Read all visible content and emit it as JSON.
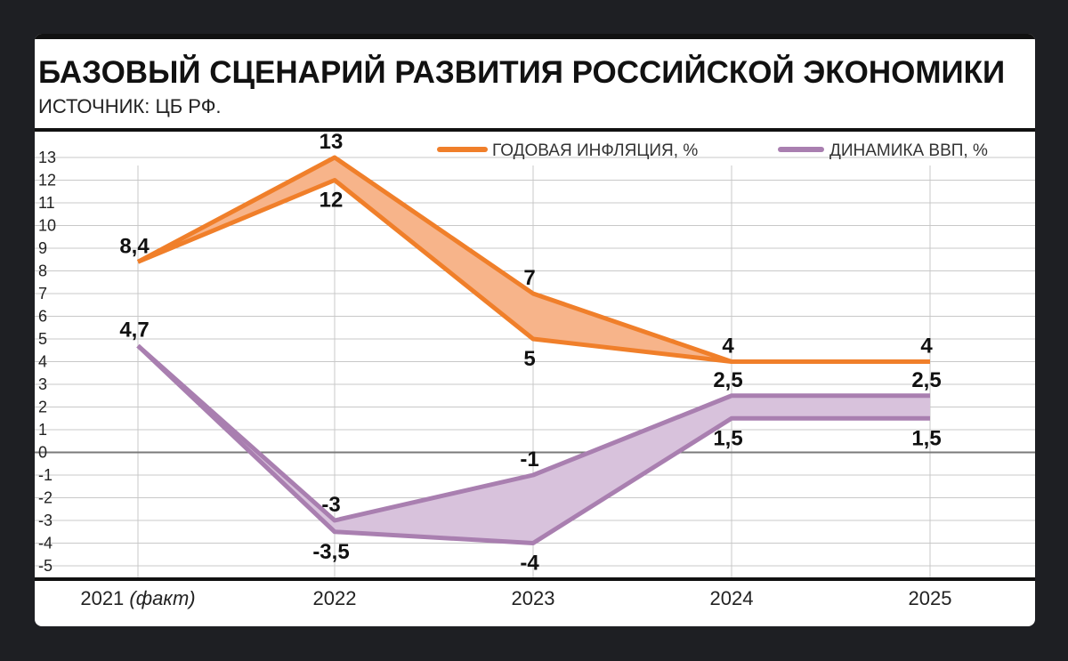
{
  "header": {
    "title": "БАЗОВЫЙ СЦЕНАРИЙ РАЗВИТИЯ РОССИЙСКОЙ ЭКОНОМИКИ",
    "subtitle": "ИСТОЧНИК: ЦБ РФ."
  },
  "chart_data": {
    "type": "area",
    "categories": [
      "2021",
      "2022",
      "2023",
      "2024",
      "2025"
    ],
    "category_labels": [
      {
        "main": "2021",
        "note": "(факт)"
      },
      {
        "main": "2022",
        "note": ""
      },
      {
        "main": "2023",
        "note": ""
      },
      {
        "main": "2024",
        "note": ""
      },
      {
        "main": "2025",
        "note": ""
      }
    ],
    "ylim": [
      -5.5,
      13.5
    ],
    "yticks": [
      13,
      12,
      11,
      10,
      9,
      8,
      7,
      6,
      5,
      4,
      3,
      2,
      1,
      0,
      -1,
      -2,
      -3,
      -4,
      -5
    ],
    "grid": true,
    "legend_position": "top-right",
    "series": [
      {
        "name": "ГОДОВАЯ ИНФЛЯЦИЯ, %",
        "color": "#f07f2a",
        "fill": "#f7b48a",
        "upper": [
          8.4,
          13,
          7,
          4,
          4
        ],
        "lower": [
          8.4,
          12,
          5,
          4,
          4
        ],
        "upper_labels": [
          "8,4",
          "13",
          "7",
          "4",
          "4"
        ],
        "lower_labels": [
          "",
          "12",
          "5",
          "",
          ""
        ]
      },
      {
        "name": "ДИНАМИКА ВВП, %",
        "color": "#a97fb0",
        "fill": "#d8c2dc",
        "upper": [
          4.7,
          -3,
          -1,
          2.5,
          2.5
        ],
        "lower": [
          4.7,
          -3.5,
          -4,
          1.5,
          1.5
        ],
        "upper_labels": [
          "4,7",
          "-3",
          "-1",
          "2,5",
          "2,5"
        ],
        "lower_labels": [
          "",
          "-3,5",
          "-4",
          "1,5",
          "1,5"
        ]
      }
    ]
  }
}
